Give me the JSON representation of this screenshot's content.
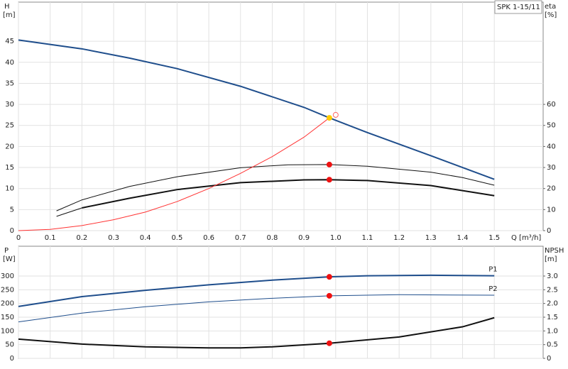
{
  "chart_data": [
    {
      "type": "line",
      "title": "SPK 1-15/11",
      "ylabel": "H",
      "yunit": "[m]",
      "y2label": "eta",
      "y2unit": "[%]",
      "xlabel": "Q [m³/h]",
      "xlim": [
        0,
        1.654
      ],
      "ylim": [
        0,
        54.3
      ],
      "y2lim": [
        0,
        108.6
      ],
      "xticks": [
        0,
        0.1,
        0.2,
        0.3,
        0.4,
        0.5,
        0.6,
        0.7,
        0.8,
        0.9,
        {
          "value": 1,
          "label": "1.0"
        },
        1.1,
        1.2,
        1.3,
        1.4,
        1.5
      ],
      "show_xtick_labels": true,
      "yticks": [
        0,
        5,
        10,
        15,
        20,
        25,
        30,
        35,
        40,
        45
      ],
      "y2ticks": [
        0,
        10,
        20,
        30,
        40,
        50,
        60
      ],
      "grid": true,
      "series": [
        {
          "color": "#1f4e8c",
          "width": 2,
          "x": [
            0,
            0.2,
            0.35,
            0.5,
            0.7,
            0.9,
            0.98,
            1.1,
            1.3,
            1.5
          ],
          "values": [
            45.3,
            43.2,
            41,
            38.5,
            34.3,
            29.3,
            26.8,
            23.3,
            17.8,
            12.2
          ]
        },
        {
          "color": "#111111",
          "width": 1,
          "axis": "y2",
          "x": [
            0.12,
            0.2,
            0.35,
            0.5,
            0.7,
            0.85,
            0.98,
            1.1,
            1.3,
            1.4,
            1.5
          ],
          "values": [
            9.4,
            14.6,
            21,
            25.6,
            29.9,
            31.3,
            31.4,
            30.6,
            27.8,
            25.2,
            21.6
          ]
        },
        {
          "color": "#111111",
          "width": 2,
          "axis": "y2",
          "x": [
            0.2,
            0.35,
            0.5,
            0.7,
            0.9,
            0.98,
            1.1,
            1.3,
            1.5
          ],
          "values": [
            10.8,
            15.4,
            19.5,
            22.8,
            24.1,
            24.2,
            23.8,
            21.4,
            16.6
          ]
        },
        {
          "color": "#111111",
          "width": 1,
          "axis": "y2",
          "x": [
            0.12,
            0.2
          ],
          "values": [
            6.8,
            10.8
          ]
        },
        {
          "color": "#ff3333",
          "width": 1,
          "x": [
            0,
            0.1,
            0.2,
            0.3,
            0.4,
            0.5,
            0.6,
            0.7,
            0.8,
            0.9,
            0.98
          ],
          "values": [
            0,
            0.3,
            1.2,
            2.6,
            4.4,
            6.9,
            10,
            13.6,
            17.6,
            22.2,
            26.8
          ]
        }
      ],
      "markers": [
        {
          "x": 0.98,
          "value": 26.8,
          "color": "#ffcc00",
          "style": "filled"
        },
        {
          "x": 1.0,
          "value": 27.5,
          "color": "#ff6666",
          "style": "hollow"
        },
        {
          "x": 0.98,
          "value": 31.4,
          "color": "#ee1111",
          "style": "filled",
          "axis": "y2"
        },
        {
          "x": 0.98,
          "value": 24.2,
          "color": "#ee1111",
          "style": "filled",
          "axis": "y2"
        }
      ]
    },
    {
      "type": "line",
      "ylabel": "P",
      "yunit": "[W]",
      "y2label": "NPSH",
      "y2unit": "[m]",
      "xlim": [
        0,
        1.654
      ],
      "ylim": [
        0,
        408.6
      ],
      "y2lim": [
        0,
        4.086
      ],
      "xticks": [
        0,
        0.1,
        0.2,
        0.3,
        0.4,
        0.5,
        0.6,
        0.7,
        0.8,
        0.9,
        1,
        1.1,
        1.2,
        1.3,
        1.4,
        1.5
      ],
      "show_xtick_labels": false,
      "yticks": [
        0,
        50,
        100,
        150,
        200,
        250,
        300
      ],
      "y2ticks": [
        0,
        0.5,
        {
          "value": 1,
          "label": "1.0"
        },
        1.5,
        {
          "value": 2,
          "label": "2.0"
        },
        2.5,
        {
          "value": 3,
          "label": "3.0"
        }
      ],
      "grid": true,
      "series": [
        {
          "name": "P1",
          "color": "#1f4e8c",
          "width": 2,
          "x": [
            0,
            0.2,
            0.4,
            0.6,
            0.8,
            0.98,
            1.1,
            1.3,
            1.5
          ],
          "values": [
            189,
            225,
            248,
            268,
            285,
            297,
            301,
            303,
            301
          ]
        },
        {
          "name": "P2",
          "color": "#1f4e8c",
          "width": 1,
          "x": [
            0,
            0.2,
            0.4,
            0.6,
            0.8,
            0.98,
            1.2,
            1.5
          ],
          "values": [
            133,
            165,
            188,
            206,
            219,
            228,
            232,
            230
          ]
        },
        {
          "color": "#111111",
          "width": 2,
          "axis": "y2",
          "x": [
            0,
            0.2,
            0.4,
            0.6,
            0.7,
            0.8,
            0.98,
            1.2,
            1.4,
            1.5
          ],
          "values": [
            0.7,
            0.52,
            0.42,
            0.38,
            0.38,
            0.42,
            0.55,
            0.78,
            1.15,
            1.48
          ]
        }
      ],
      "markers": [
        {
          "x": 0.98,
          "value": 297,
          "color": "#ee1111",
          "style": "filled"
        },
        {
          "x": 0.98,
          "value": 228,
          "color": "#ee1111",
          "style": "filled"
        },
        {
          "x": 0.98,
          "value": 0.55,
          "color": "#ee1111",
          "style": "filled",
          "axis": "y2"
        }
      ]
    }
  ]
}
